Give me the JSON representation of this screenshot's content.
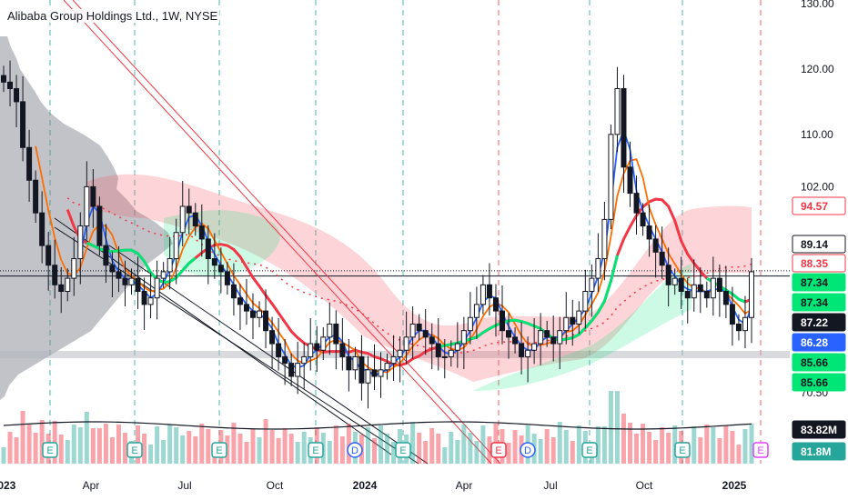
{
  "legend": "Alibaba Group Holdings Ltd., 1W, NYSE",
  "chart_data": {
    "type": "candlestick",
    "title": "Alibaba Group Holdings Ltd., 1W, NYSE",
    "y_ticks": [
      "130.00",
      "120.00",
      "110.00",
      "102.00",
      "70.50"
    ],
    "ylim": [
      68,
      131
    ],
    "x_ticks": [
      {
        "label": "2023",
        "bold": true
      },
      {
        "label": "Apr",
        "bold": false
      },
      {
        "label": "Jul",
        "bold": false
      },
      {
        "label": "Oct",
        "bold": false
      },
      {
        "label": "2024",
        "bold": true
      },
      {
        "label": "Apr",
        "bold": false
      },
      {
        "label": "Jul",
        "bold": false
      },
      {
        "label": "Oct",
        "bold": false
      },
      {
        "label": "2025",
        "bold": true
      }
    ],
    "price_badges": [
      {
        "value": "94.57",
        "bg": "#ffffff",
        "fg": "#f23645",
        "border": "#f23645"
      },
      {
        "value": "89.14",
        "bg": "#ffffff",
        "fg": "#131722",
        "border": "#131722"
      },
      {
        "value": "88.35",
        "bg": "#ffffff",
        "fg": "#f23645",
        "border": "#f23645"
      },
      {
        "value": "87.34",
        "bg": "#00e676",
        "fg": "#131722",
        "border": "#00e676"
      },
      {
        "value": "87.34",
        "bg": "#00e676",
        "fg": "#131722",
        "border": "#00e676"
      },
      {
        "value": "87.22",
        "bg": "#131722",
        "fg": "#ffffff",
        "border": "#131722"
      },
      {
        "value": "86.28",
        "bg": "#2962ff",
        "fg": "#ffffff",
        "border": "#2962ff"
      },
      {
        "value": "85.66",
        "bg": "#00e676",
        "fg": "#131722",
        "border": "#00e676"
      },
      {
        "value": "85.66",
        "bg": "#00e676",
        "fg": "#131722",
        "border": "#00e676"
      },
      {
        "value": "83.82M",
        "bg": "#131722",
        "fg": "#ffffff",
        "border": "#131722"
      },
      {
        "value": "81.8M",
        "bg": "#26a69a",
        "fg": "#ffffff",
        "border": "#26a69a"
      }
    ],
    "events": [
      {
        "label": "E",
        "type": "earnings-past"
      },
      {
        "label": "E",
        "type": "earnings-past"
      },
      {
        "label": "E",
        "type": "earnings-past"
      },
      {
        "label": "E",
        "type": "earnings-past"
      },
      {
        "label": "D",
        "type": "dividend"
      },
      {
        "label": "E",
        "type": "earnings-past"
      },
      {
        "label": "E",
        "type": "earnings-loss"
      },
      {
        "label": "D",
        "type": "dividend"
      },
      {
        "label": "E",
        "type": "earnings-past"
      },
      {
        "label": "E",
        "type": "earnings-past"
      },
      {
        "label": "E",
        "type": "earnings-upcoming"
      }
    ],
    "weekly_close": [
      118,
      117,
      115,
      108,
      103,
      98,
      93,
      90,
      87,
      86,
      88,
      91,
      96,
      102,
      99,
      93,
      90,
      89,
      88,
      87,
      88,
      86,
      84,
      85,
      88,
      89,
      91,
      95,
      99,
      98,
      96,
      94,
      91,
      90,
      89,
      87,
      85,
      84,
      83,
      82,
      83,
      80,
      78,
      76,
      75,
      73,
      75,
      76,
      78,
      77,
      79,
      81,
      78,
      76,
      74,
      76,
      72,
      74,
      73,
      74,
      75,
      76,
      77,
      79,
      81,
      80,
      79,
      78,
      76,
      76,
      77,
      78,
      80,
      82,
      84,
      87,
      85,
      83,
      80,
      79,
      78,
      76,
      77,
      78,
      80,
      79,
      78,
      80,
      82,
      81,
      83,
      86,
      88,
      91,
      97,
      110,
      117,
      105,
      101,
      98,
      96,
      94,
      92,
      90,
      87,
      88,
      86,
      85,
      87,
      86,
      85,
      88,
      86,
      84,
      81,
      80,
      82,
      89
    ]
  }
}
